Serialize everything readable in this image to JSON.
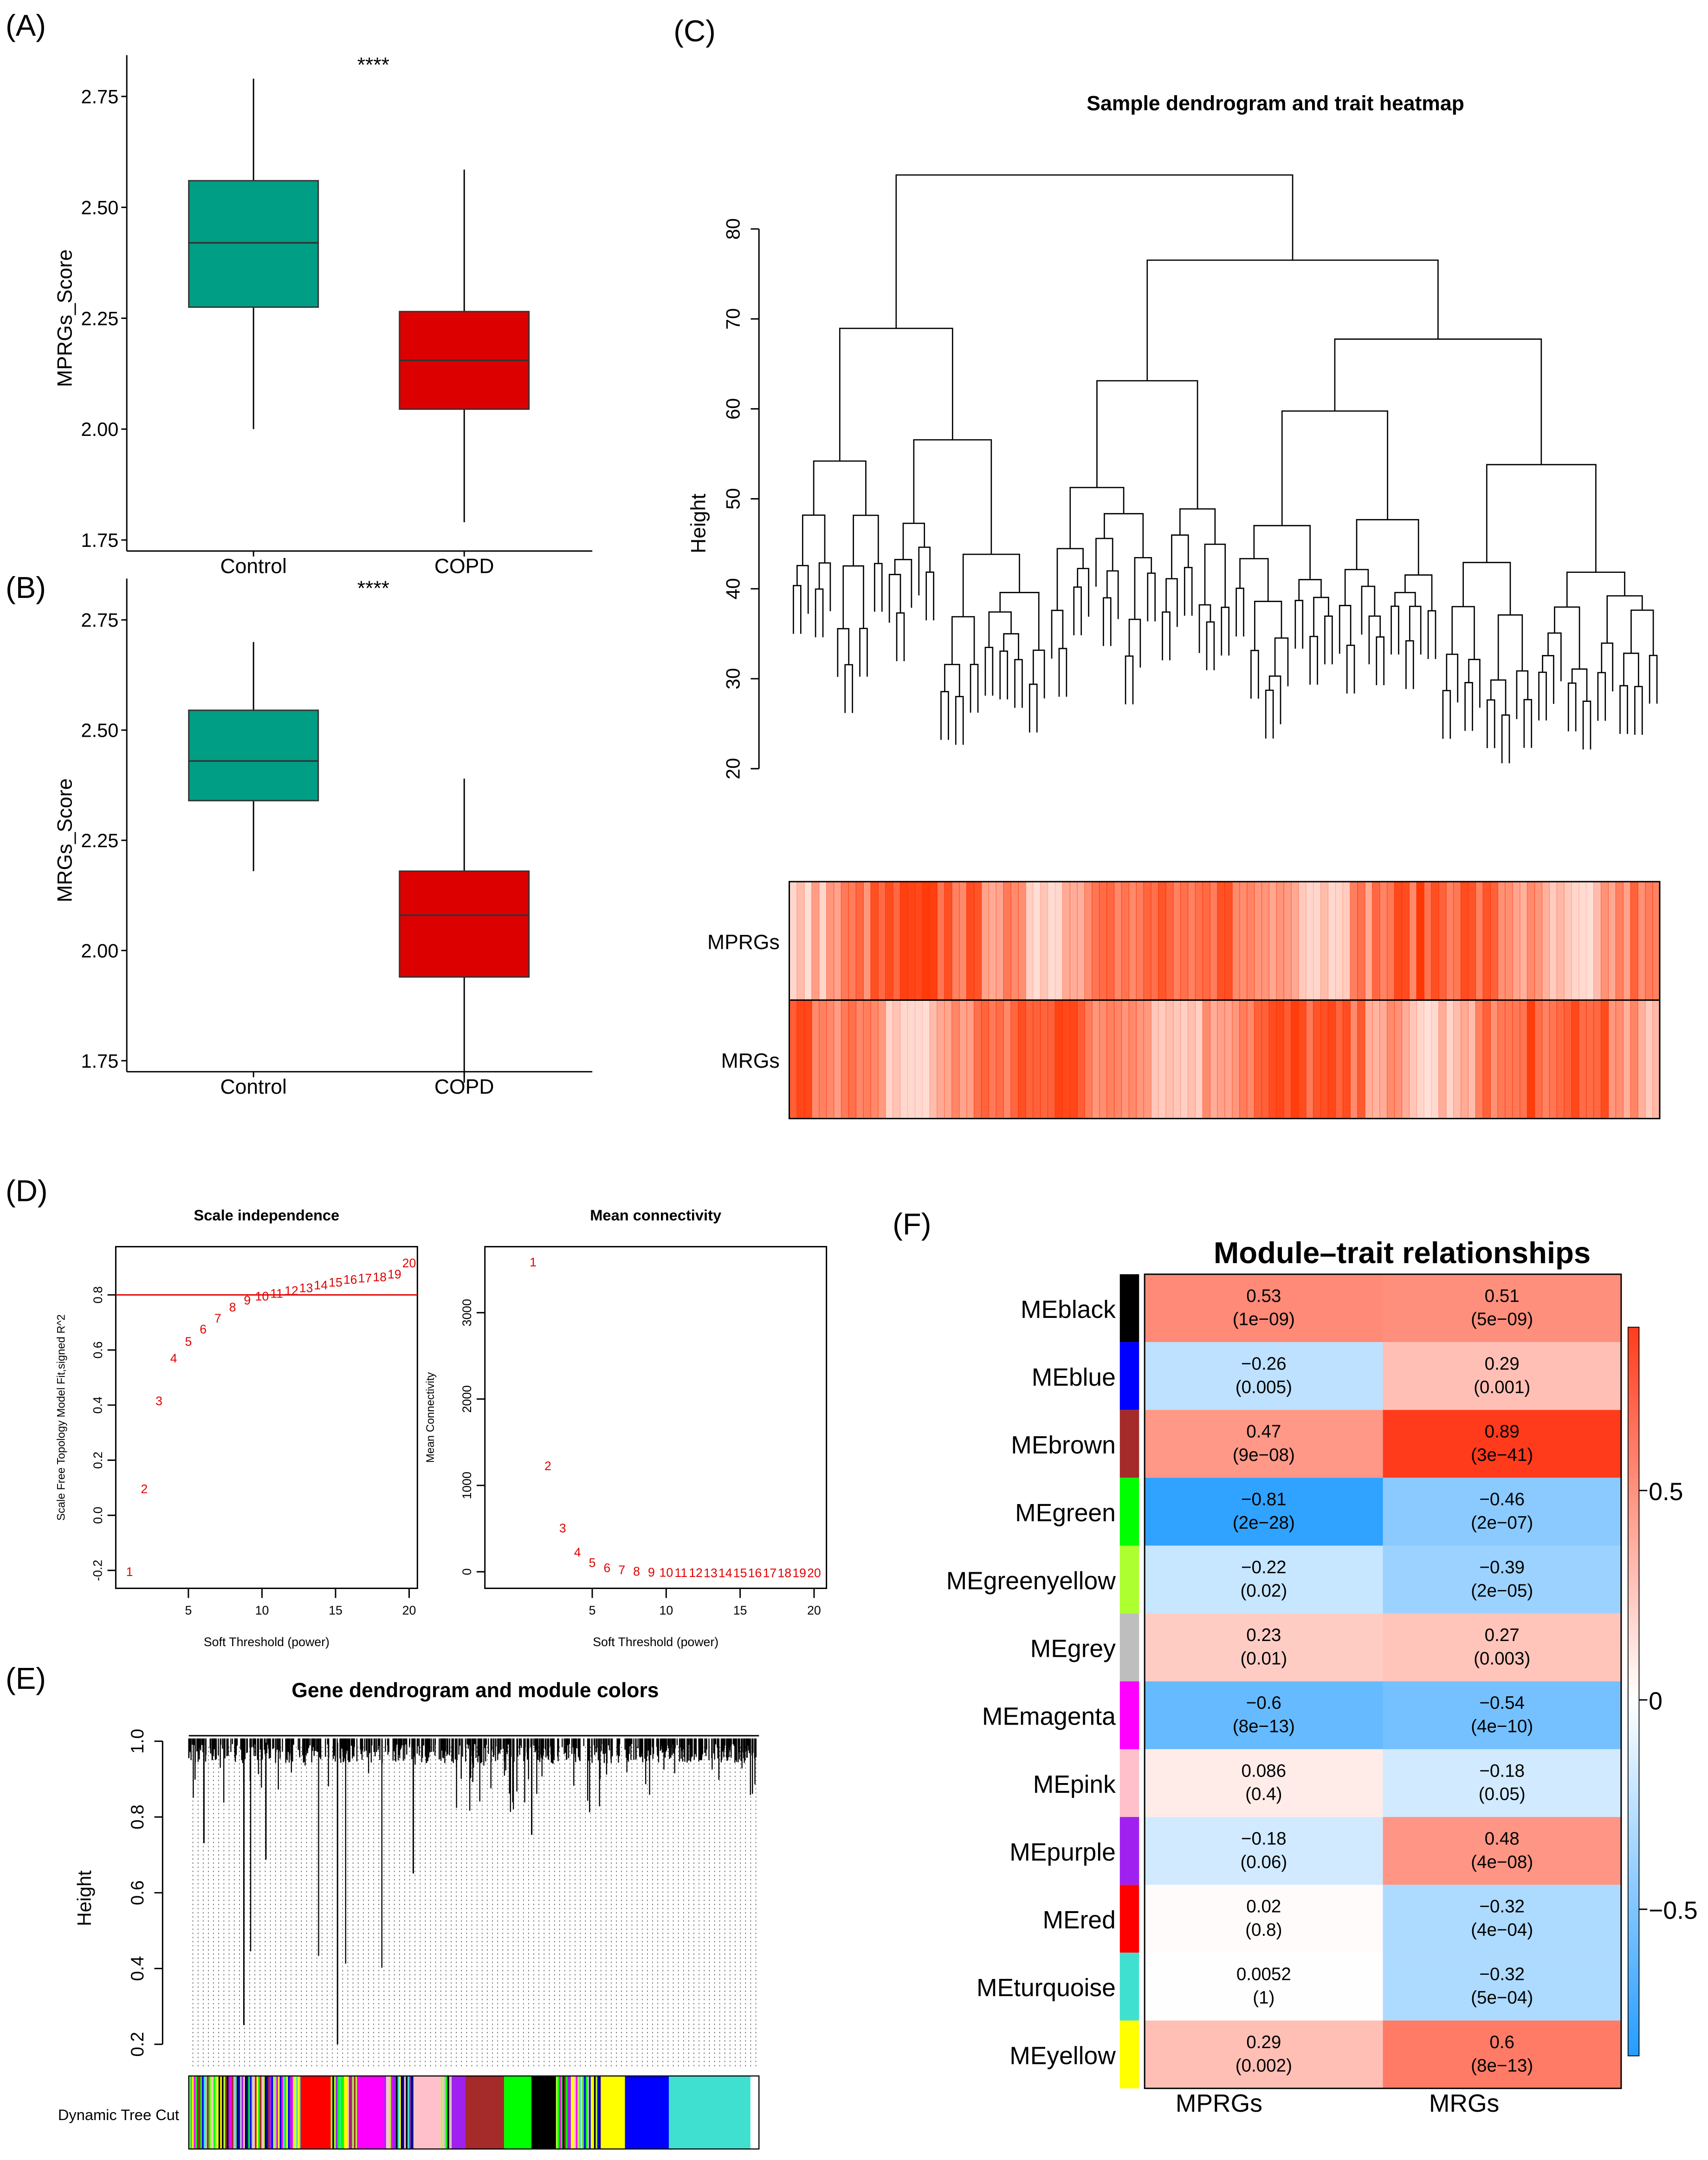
{
  "panel_labels": [
    "(A)",
    "(B)",
    "(C)",
    "(D)",
    "(E)",
    "(F)"
  ],
  "chart_data": [
    {
      "id": "A",
      "type": "box",
      "ylabel": "MPRGs_Score",
      "significance": "****",
      "categories": [
        "Control",
        "COPD"
      ],
      "colors": [
        "#009E84",
        "#DD0000"
      ],
      "yticks": [
        "1.75",
        "2.00",
        "2.25",
        "2.50",
        "2.75"
      ],
      "ylim": [
        1.75,
        2.8
      ],
      "boxes": [
        {
          "min": 2.0,
          "q1": 2.275,
          "median": 2.42,
          "q3": 2.56,
          "max": 2.79
        },
        {
          "min": 1.79,
          "q1": 2.045,
          "median": 2.155,
          "q3": 2.265,
          "max": 2.585
        }
      ]
    },
    {
      "id": "B",
      "type": "box",
      "ylabel": "MRGs_Score",
      "significance": "****",
      "categories": [
        "Control",
        "COPD"
      ],
      "colors": [
        "#009E84",
        "#DD0000"
      ],
      "yticks": [
        "1.75",
        "2.00",
        "2.25",
        "2.50",
        "2.75"
      ],
      "ylim": [
        1.65,
        2.75
      ],
      "boxes": [
        {
          "min": 2.18,
          "q1": 2.34,
          "median": 2.43,
          "q3": 2.545,
          "max": 2.7
        },
        {
          "min": 1.7,
          "q1": 1.94,
          "median": 2.08,
          "q3": 2.18,
          "max": 2.39
        }
      ]
    },
    {
      "id": "C",
      "type": "dendrogram+heatmap",
      "title": "Sample dendrogram and trait heatmap",
      "ylabel": "Height",
      "yticks": [
        20,
        30,
        40,
        50,
        60,
        70,
        80
      ],
      "root_height": 86,
      "traits": [
        "MPRGs",
        "MRGs"
      ],
      "trait_color": "#FF3300"
    },
    {
      "id": "D1",
      "type": "scatter",
      "title": "Scale independence",
      "xlabel": "Soft Threshold (power)",
      "ylabel": "Scale Free Topology Model Fit,signed R^2",
      "xticks": [
        5,
        10,
        15,
        20
      ],
      "yticks": [
        "-0.2",
        "0.0",
        "0.2",
        "0.4",
        "0.6",
        "0.8"
      ],
      "hline": 0.8,
      "color": "#E00000",
      "x": [
        1,
        2,
        3,
        4,
        5,
        6,
        7,
        8,
        9,
        10,
        11,
        12,
        13,
        14,
        15,
        16,
        17,
        18,
        19,
        20
      ],
      "y": [
        -0.2,
        0.1,
        0.42,
        0.575,
        0.635,
        0.68,
        0.72,
        0.76,
        0.785,
        0.8,
        0.81,
        0.82,
        0.83,
        0.84,
        0.85,
        0.86,
        0.865,
        0.87,
        0.88,
        0.92
      ]
    },
    {
      "id": "D2",
      "type": "scatter",
      "title": "Mean connectivity",
      "xlabel": "Soft Threshold (power)",
      "ylabel": "Mean Connectivity",
      "xticks": [
        5,
        10,
        15,
        20
      ],
      "yticks": [
        0,
        1000,
        2000,
        3000
      ],
      "color": "#E00000",
      "x": [
        1,
        2,
        3,
        4,
        5,
        6,
        7,
        8,
        9,
        10,
        11,
        12,
        13,
        14,
        15,
        16,
        17,
        18,
        19,
        20
      ],
      "y": [
        3600,
        1240,
        520,
        240,
        120,
        60,
        35,
        20,
        10,
        6,
        4,
        3,
        2,
        2,
        1,
        1,
        1,
        1,
        1,
        1
      ]
    },
    {
      "id": "E",
      "type": "dendrogram",
      "title": "Gene dendrogram and module colors",
      "ylabel": "Height",
      "yticks": [
        "0.2",
        "0.4",
        "0.6",
        "0.8",
        "1.0"
      ],
      "colorbar_label": "Dynamic Tree Cut",
      "module_segments": [
        [
          "mixed",
          0.196
        ],
        [
          "#FF0000",
          0.053
        ],
        [
          "mixed",
          0.046
        ],
        [
          "#FF00FF",
          0.048
        ],
        [
          "mixed",
          0.051
        ],
        [
          "#FFC0CB",
          0.048
        ],
        [
          "mixed",
          0.019
        ],
        [
          "#A020F0",
          0.024
        ],
        [
          "#A52A2A",
          0.068
        ],
        [
          "#00FF00",
          0.048
        ],
        [
          "#000000",
          0.043
        ],
        [
          "mixed",
          0.08
        ],
        [
          "#FFFF00",
          0.041
        ],
        [
          "#0000FF",
          0.077
        ],
        [
          "#40E0D0",
          0.143
        ]
      ]
    },
    {
      "id": "F",
      "type": "heatmap",
      "title": "Module–trait relationships",
      "columns": [
        "MPRGs",
        "MRGs"
      ],
      "legend_ticks": [
        {
          "value": 0.5,
          "label": "0.5"
        },
        {
          "value": 0,
          "label": "0"
        },
        {
          "value": -0.5,
          "label": "−0.5"
        }
      ],
      "legend_range": [
        -0.85,
        0.89
      ],
      "rows": [
        {
          "name": "MEblack",
          "color": "#000000",
          "r": [
            0.53,
            0.51
          ],
          "p": [
            "(1e−09)",
            "(5e−09)"
          ],
          "t": [
            "0.53",
            "0.51"
          ]
        },
        {
          "name": "MEblue",
          "color": "#0000FF",
          "r": [
            -0.26,
            0.29
          ],
          "p": [
            "(0.005)",
            "(0.001)"
          ],
          "t": [
            "−0.26",
            "0.29"
          ]
        },
        {
          "name": "MEbrown",
          "color": "#A52A2A",
          "r": [
            0.47,
            0.89
          ],
          "p": [
            "(9e−08)",
            "(3e−41)"
          ],
          "t": [
            "0.47",
            "0.89"
          ]
        },
        {
          "name": "MEgreen",
          "color": "#00FF00",
          "r": [
            -0.81,
            -0.46
          ],
          "p": [
            "(2e−28)",
            "(2e−07)"
          ],
          "t": [
            "−0.81",
            "−0.46"
          ]
        },
        {
          "name": "MEgreenyellow",
          "color": "#ADFF2F",
          "r": [
            -0.22,
            -0.39
          ],
          "p": [
            "(0.02)",
            "(2e−05)"
          ],
          "t": [
            "−0.22",
            "−0.39"
          ]
        },
        {
          "name": "MEgrey",
          "color": "#BEBEBE",
          "r": [
            0.23,
            0.27
          ],
          "p": [
            "(0.01)",
            "(0.003)"
          ],
          "t": [
            "0.23",
            "0.27"
          ]
        },
        {
          "name": "MEmagenta",
          "color": "#FF00FF",
          "r": [
            -0.6,
            -0.54
          ],
          "p": [
            "(8e−13)",
            "(4e−10)"
          ],
          "t": [
            "−0.6",
            "−0.54"
          ]
        },
        {
          "name": "MEpink",
          "color": "#FFC0CB",
          "r": [
            0.086,
            -0.18
          ],
          "p": [
            "(0.4)",
            "(0.05)"
          ],
          "t": [
            "0.086",
            "−0.18"
          ]
        },
        {
          "name": "MEpurple",
          "color": "#A020F0",
          "r": [
            -0.18,
            0.48
          ],
          "p": [
            "(0.06)",
            "(4e−08)"
          ],
          "t": [
            "−0.18",
            "0.48"
          ]
        },
        {
          "name": "MEred",
          "color": "#FF0000",
          "r": [
            0.02,
            -0.32
          ],
          "p": [
            "(0.8)",
            "(4e−04)"
          ],
          "t": [
            "0.02",
            "−0.32"
          ]
        },
        {
          "name": "MEturquoise",
          "color": "#40E0D0",
          "r": [
            0.0052,
            -0.32
          ],
          "p": [
            "(1)",
            "(5e−04)"
          ],
          "t": [
            "0.0052",
            "−0.32"
          ]
        },
        {
          "name": "MEyellow",
          "color": "#FFFF00",
          "r": [
            0.29,
            0.6
          ],
          "p": [
            "(0.002)",
            "(8e−13)"
          ],
          "t": [
            "0.29",
            "0.6"
          ]
        }
      ]
    }
  ]
}
